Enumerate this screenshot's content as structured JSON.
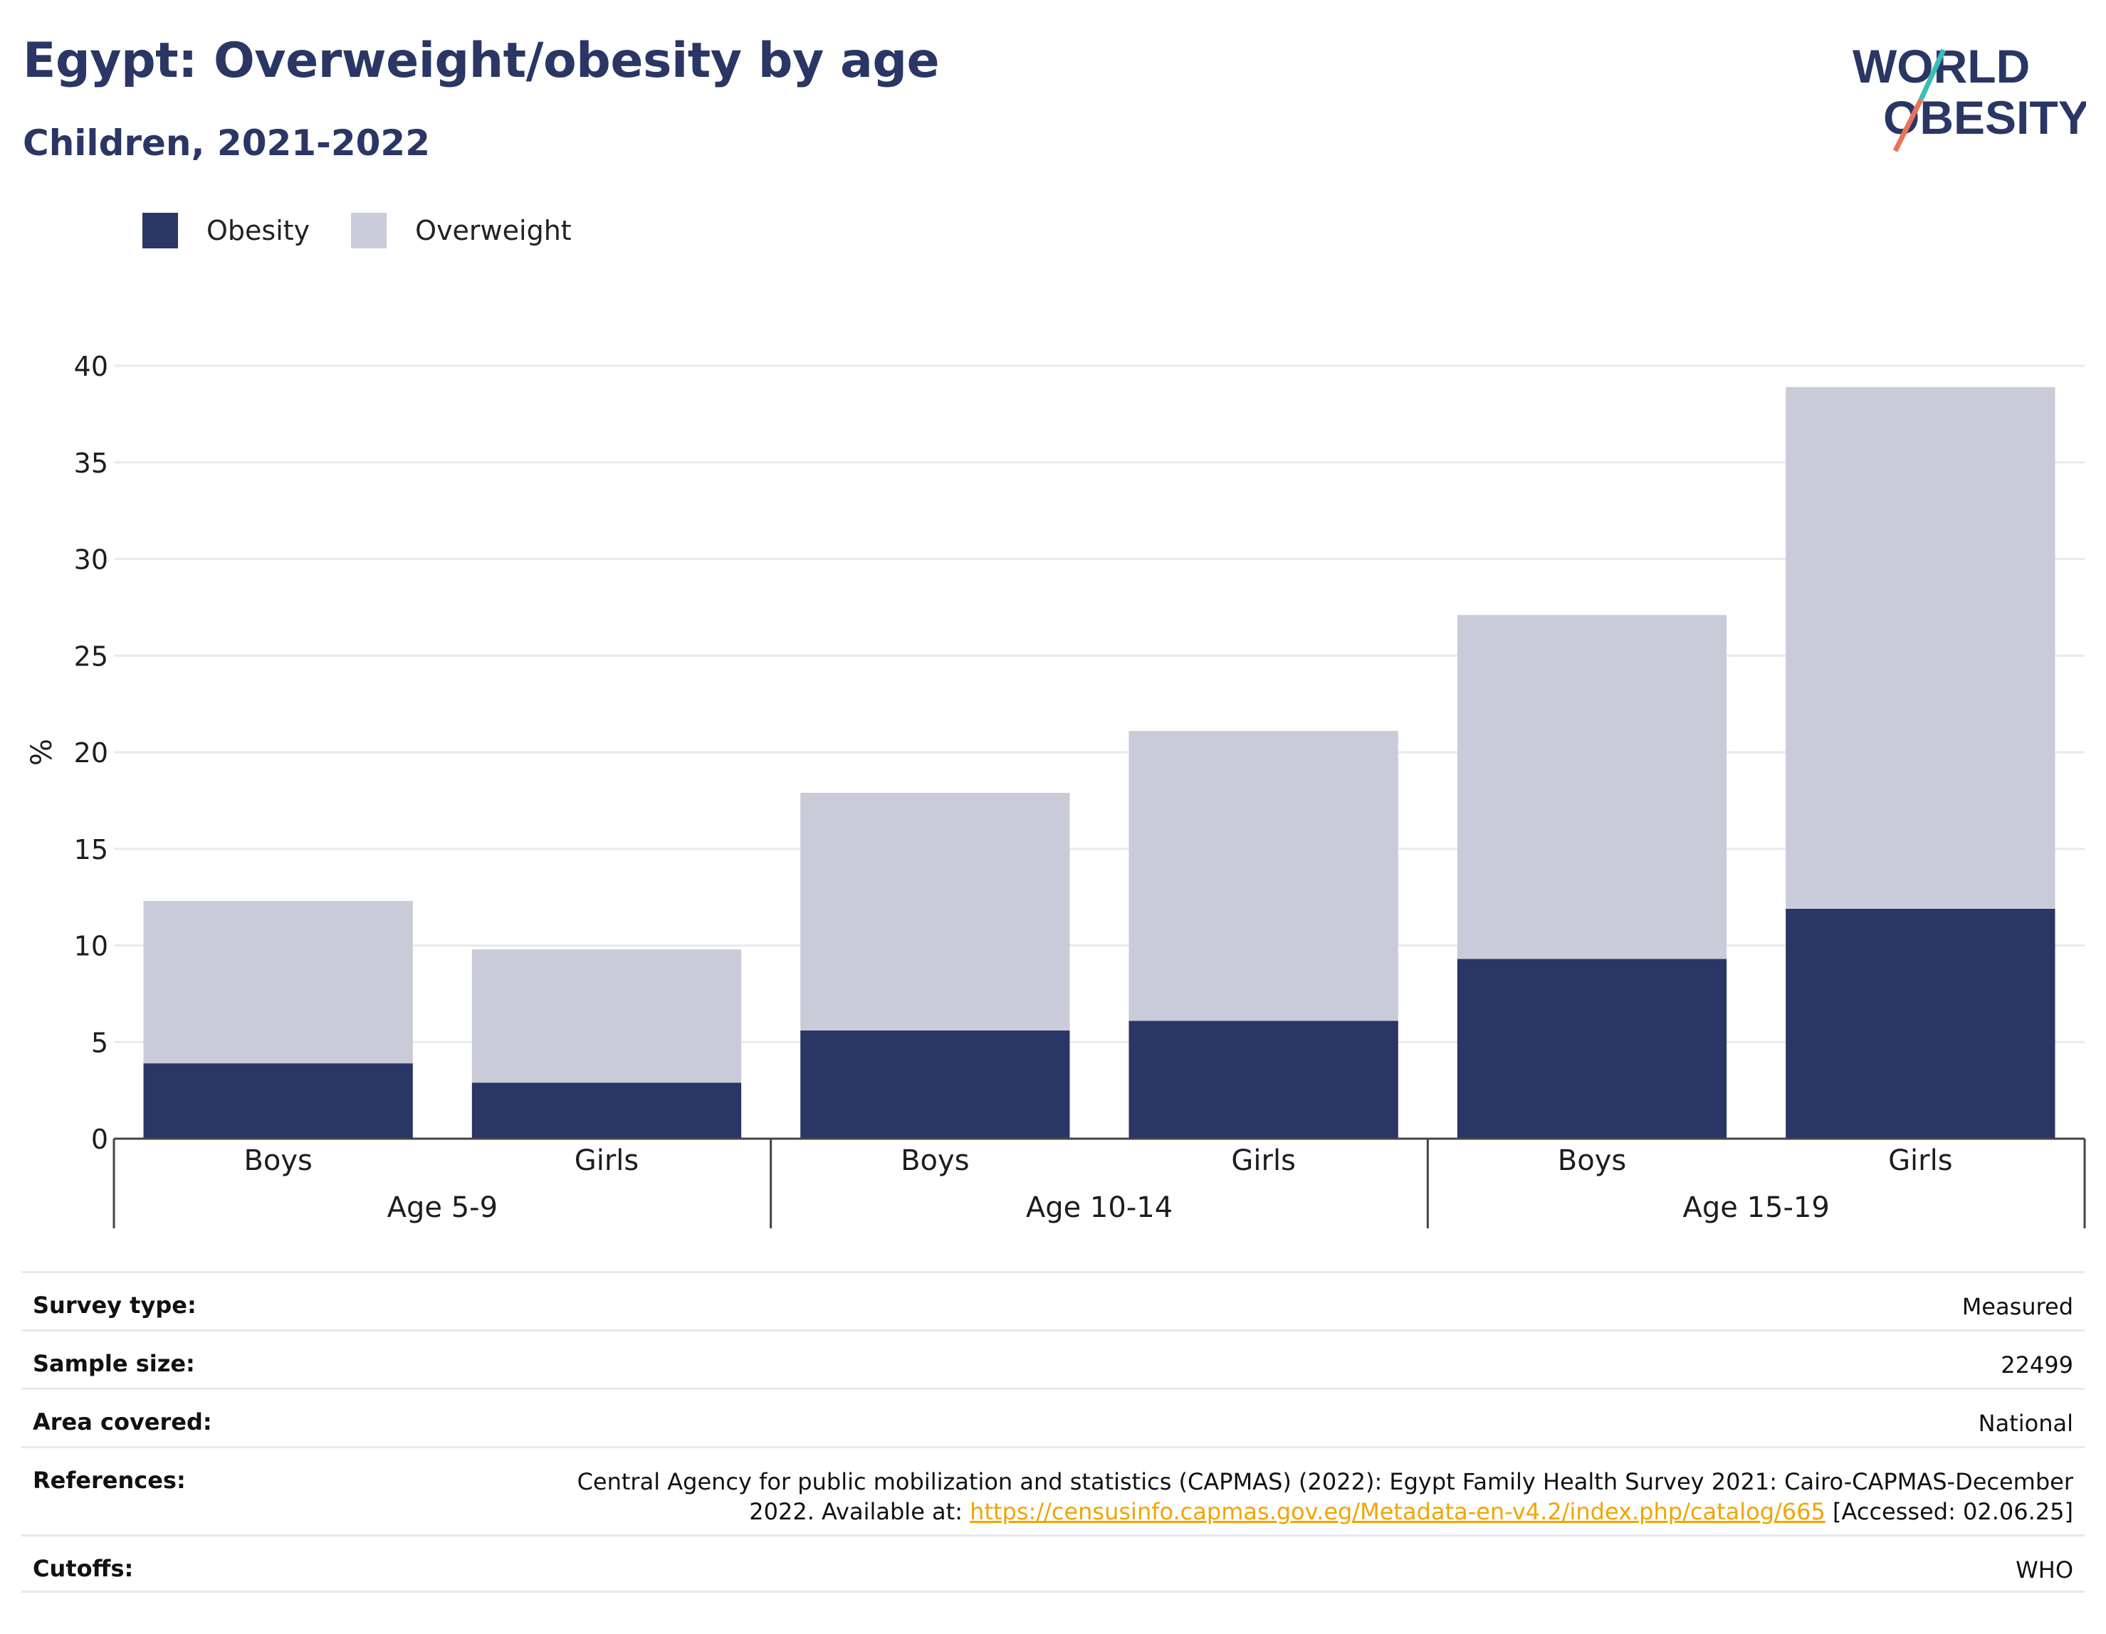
{
  "header": {
    "title": "Egypt: Overweight/obesity by age",
    "subtitle": "Children, 2021-2022",
    "logo": {
      "line1": "WORLD",
      "line2": "OBESITY",
      "colors": {
        "text": "#2a3663",
        "slash_top": "#3bbdb8",
        "slash_bottom": "#e8735a"
      }
    }
  },
  "legend": [
    {
      "label": "Obesity",
      "color": "#2a3663"
    },
    {
      "label": "Overweight",
      "color": "#c9ccd8"
    }
  ],
  "chart_data": {
    "type": "bar",
    "stacked": true,
    "ylabel": "%",
    "ylim": [
      0,
      40
    ],
    "yticks": [
      0,
      5,
      10,
      15,
      20,
      25,
      30,
      35,
      40
    ],
    "grid": true,
    "legend_position": "top-left",
    "groups": [
      {
        "label": "Age 5-9",
        "categories": [
          "Boys",
          "Girls"
        ]
      },
      {
        "label": "Age 10-14",
        "categories": [
          "Boys",
          "Girls"
        ]
      },
      {
        "label": "Age 15-19",
        "categories": [
          "Boys",
          "Girls"
        ]
      }
    ],
    "categories": [
      "Boys",
      "Girls",
      "Boys",
      "Girls",
      "Boys",
      "Girls"
    ],
    "series": [
      {
        "name": "Obesity",
        "color": "#2a3663",
        "values": [
          3.9,
          2.9,
          5.6,
          6.1,
          9.3,
          11.9
        ]
      },
      {
        "name": "Overweight",
        "color": "#c9ccd8",
        "values": [
          8.4,
          6.9,
          12.3,
          15.0,
          17.8,
          27.0
        ]
      }
    ]
  },
  "info": [
    {
      "key": "Survey type:",
      "value": "Measured"
    },
    {
      "key": "Sample size:",
      "value": "22499"
    },
    {
      "key": "Area covered:",
      "value": "National"
    },
    {
      "key": "References:",
      "value_line1": "Central Agency for public mobilization and statistics (CAPMAS) (2022): Egypt Family Health Survey 2021: Cairo-CAPMAS-December",
      "value_line2_pre": "2022. Available at: ",
      "link": "https://censusinfo.capmas.gov.eg/Metadata-en-v4.2/index.php/catalog/665",
      "value_line2_post": " [Accessed: 02.06.25]"
    },
    {
      "key": "Cutoffs:",
      "value": "WHO"
    }
  ]
}
